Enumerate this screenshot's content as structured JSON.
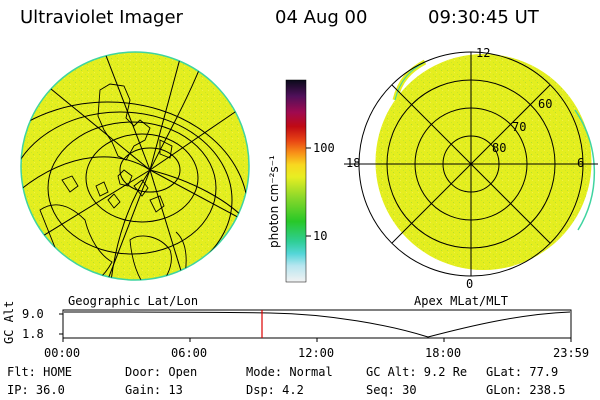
{
  "header": {
    "title": "Ultraviolet Imager",
    "date": "04 Aug 00",
    "time": "09:30:45 UT"
  },
  "left_panel": {
    "label": "Geographic Lat/Lon"
  },
  "right_panel": {
    "label": "Apex MLat/MLT",
    "mlt_labels": {
      "top": "12",
      "right": "6",
      "bottom": "0",
      "left": "18"
    },
    "lat_labels": [
      "60",
      "70",
      "80"
    ]
  },
  "colorbar": {
    "unit_label": "photon cm⁻²s⁻¹",
    "ticks": [
      "100",
      "10"
    ]
  },
  "altitude_plot": {
    "ylabel": "GC Alt",
    "yticks": [
      "9.0",
      "1.8"
    ],
    "xticks": [
      "00:00",
      "06:00",
      "12:00",
      "18:00",
      "23:59"
    ],
    "current_time_marker": "09:30"
  },
  "info": {
    "flt": "Flt:  HOME",
    "ip": "IP:  36.0",
    "door": "Door:  Open",
    "gain": "Gain:  13",
    "mode": "Mode:  Normal",
    "dsp": "Dsp:     4.2",
    "gc_alt": "GC Alt:  9.2 Re",
    "seq": "Seq:  30",
    "glat": "GLat:   77.9",
    "glon": "GLon:  238.5"
  },
  "colors": {
    "fill": "#e4ee1f",
    "speckle": "#c8e826",
    "edge": "#3fd4a0",
    "marker": "#dd0000"
  }
}
